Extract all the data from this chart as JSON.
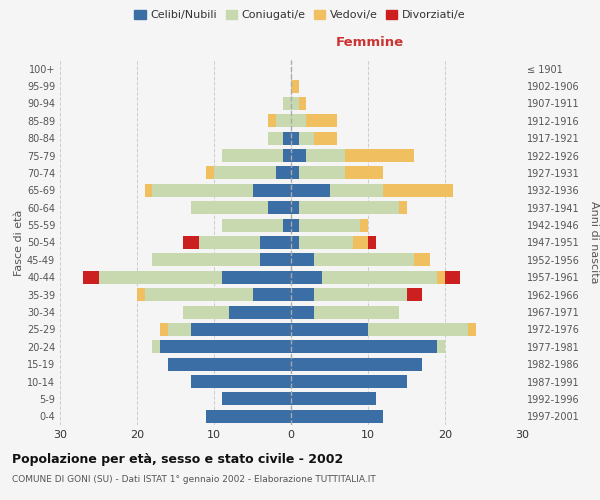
{
  "age_groups": [
    "0-4",
    "5-9",
    "10-14",
    "15-19",
    "20-24",
    "25-29",
    "30-34",
    "35-39",
    "40-44",
    "45-49",
    "50-54",
    "55-59",
    "60-64",
    "65-69",
    "70-74",
    "75-79",
    "80-84",
    "85-89",
    "90-94",
    "95-99",
    "100+"
  ],
  "birth_years": [
    "1997-2001",
    "1992-1996",
    "1987-1991",
    "1982-1986",
    "1977-1981",
    "1972-1976",
    "1967-1971",
    "1962-1966",
    "1957-1961",
    "1952-1956",
    "1947-1951",
    "1942-1946",
    "1937-1941",
    "1932-1936",
    "1927-1931",
    "1922-1926",
    "1917-1921",
    "1912-1916",
    "1907-1911",
    "1902-1906",
    "≤ 1901"
  ],
  "males": {
    "celibi": [
      11,
      9,
      13,
      16,
      17,
      13,
      8,
      5,
      9,
      4,
      4,
      1,
      3,
      5,
      2,
      1,
      1,
      0,
      0,
      0,
      0
    ],
    "coniugati": [
      0,
      0,
      0,
      0,
      1,
      3,
      6,
      14,
      16,
      14,
      8,
      8,
      10,
      13,
      8,
      8,
      2,
      2,
      1,
      0,
      0
    ],
    "vedovi": [
      0,
      0,
      0,
      0,
      0,
      1,
      0,
      1,
      0,
      0,
      0,
      0,
      0,
      1,
      1,
      0,
      0,
      1,
      0,
      0,
      0
    ],
    "divorziati": [
      0,
      0,
      0,
      0,
      0,
      0,
      0,
      0,
      2,
      0,
      2,
      0,
      0,
      0,
      0,
      0,
      0,
      0,
      0,
      0,
      0
    ]
  },
  "females": {
    "nubili": [
      12,
      11,
      15,
      17,
      19,
      10,
      3,
      3,
      4,
      3,
      1,
      1,
      1,
      5,
      1,
      2,
      1,
      0,
      0,
      0,
      0
    ],
    "coniugate": [
      0,
      0,
      0,
      0,
      1,
      13,
      11,
      12,
      15,
      13,
      7,
      8,
      13,
      7,
      6,
      5,
      2,
      2,
      1,
      0,
      0
    ],
    "vedove": [
      0,
      0,
      0,
      0,
      0,
      1,
      0,
      0,
      1,
      2,
      2,
      1,
      1,
      9,
      5,
      9,
      3,
      4,
      1,
      1,
      0
    ],
    "divorziate": [
      0,
      0,
      0,
      0,
      0,
      0,
      0,
      2,
      2,
      0,
      1,
      0,
      0,
      0,
      0,
      0,
      0,
      0,
      0,
      0,
      0
    ]
  },
  "color_celibi": "#3a6ea5",
  "color_coniugati": "#c8d9b0",
  "color_vedovi": "#f0c060",
  "color_divorziati": "#cc2020",
  "title_main": "Popolazione per età, sesso e stato civile - 2002",
  "title_sub": "COMUNE DI GONI (SU) - Dati ISTAT 1° gennaio 2002 - Elaborazione TUTTITALIA.IT",
  "xlabel_right": "Femmine",
  "ylabel_left": "Fasce di età",
  "ylabel_right": "Anni di nascita",
  "xlim": 30,
  "legend_labels": [
    "Celibi/Nubili",
    "Coniugati/e",
    "Vedovi/e",
    "Divorziati/e"
  ],
  "bg_color": "#f5f5f5",
  "bar_height": 0.75
}
